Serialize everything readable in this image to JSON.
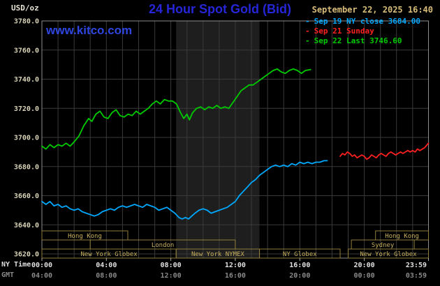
{
  "header": {
    "units_label": "USD/oz",
    "title": "24 Hour Spot Gold (Bid)",
    "datetime": "September 22, 2025 16:40",
    "watermark": "www.kitco.com"
  },
  "chart_data": {
    "type": "line",
    "title": "24 Hour Spot Gold (Bid)",
    "ylim": [
      3620,
      3780
    ],
    "xlim_hours": [
      0,
      23.983
    ],
    "last_price": 3746.6,
    "ny_close_price": 3684.0,
    "nymex_band_hours": [
      8.33,
      13.5
    ],
    "colors": {
      "band": "#1e1e1e",
      "grid": "#3a3a3a",
      "frame": "#8c8c8c",
      "axis_y": "#d8d3b8",
      "axis_ny": "#e0e0e0",
      "axis_gmt": "#8a8a8a",
      "session_border": "#8f7d3a",
      "session_text": "#c8b15e",
      "tick": "#aaaaaa"
    },
    "y_axis": {
      "ticks": [
        {
          "value": 3780,
          "label": "3780.0"
        },
        {
          "value": 3760,
          "label": "3760.0"
        },
        {
          "value": 3740,
          "label": "3740.0"
        },
        {
          "value": 3720,
          "label": "3720.0"
        },
        {
          "value": 3700,
          "label": "3700.0"
        },
        {
          "value": 3680,
          "label": "3680.0"
        },
        {
          "value": 3660,
          "label": "3660.0"
        },
        {
          "value": 3640,
          "label": "3640.0"
        },
        {
          "value": 3620,
          "label": "3620.0"
        }
      ]
    },
    "x_axis": {
      "row1_label": "NY Time",
      "row2_label": "GMT",
      "ticks": [
        {
          "h": 0,
          "ny": "00:00",
          "gmt": "04:00"
        },
        {
          "h": 4,
          "ny": "04:00",
          "gmt": "08:00"
        },
        {
          "h": 8,
          "ny": "08:00",
          "gmt": "12:00"
        },
        {
          "h": 12,
          "ny": "12:00",
          "gmt": "16:00"
        },
        {
          "h": 16,
          "ny": "16:00",
          "gmt": "20:00"
        },
        {
          "h": 20,
          "ny": "20:00",
          "gmt": "00:00"
        },
        {
          "h": 23.983,
          "ny": "23:59",
          "gmt": "03:59"
        }
      ]
    },
    "legend": [
      {
        "marker": "-",
        "label": "Sep 19 NY close 3684.00",
        "color": "#00a8ff"
      },
      {
        "marker": "-",
        "label": "Sep 21 Sunday",
        "color": "#ff2020"
      },
      {
        "marker": "-",
        "label": "Sep 22 Last 3746.60",
        "color": "#00cc00"
      }
    ],
    "market_sessions": [
      {
        "row": 0,
        "start_h": 0,
        "end_h": 5.33,
        "label": "Hong Kong"
      },
      {
        "row": 0,
        "start_h": 20.7,
        "end_h": 23.983,
        "label": "Hong Kong"
      },
      {
        "row": 1,
        "start_h": 3.0,
        "end_h": 12.0,
        "label": "London"
      },
      {
        "row": 1,
        "start_h": 19.2,
        "end_h": 23.1,
        "label": "Sydney"
      },
      {
        "row": 2,
        "start_h": 0,
        "end_h": 8.33,
        "label": "New York Globex"
      },
      {
        "row": 2,
        "start_h": 8.33,
        "end_h": 13.5,
        "label": "New York NYMEX"
      },
      {
        "row": 2,
        "start_h": 13.5,
        "end_h": 18.5,
        "label": "NY Globex"
      },
      {
        "row": 2,
        "start_h": 19.0,
        "end_h": 23.983,
        "label": "New York Globex"
      }
    ],
    "series": [
      {
        "id": "sep19",
        "name": "Sep 19 NY close",
        "color": "#00a8ff",
        "points": [
          [
            0,
            3656
          ],
          [
            0.25,
            3654
          ],
          [
            0.5,
            3656
          ],
          [
            0.75,
            3653
          ],
          [
            1,
            3654
          ],
          [
            1.25,
            3652
          ],
          [
            1.5,
            3653
          ],
          [
            1.75,
            3651
          ],
          [
            2,
            3650
          ],
          [
            2.25,
            3651
          ],
          [
            2.5,
            3649
          ],
          [
            2.75,
            3648
          ],
          [
            3,
            3647
          ],
          [
            3.25,
            3646
          ],
          [
            3.5,
            3647
          ],
          [
            3.75,
            3649
          ],
          [
            4,
            3650
          ],
          [
            4.25,
            3651
          ],
          [
            4.5,
            3650
          ],
          [
            4.75,
            3652
          ],
          [
            5,
            3653
          ],
          [
            5.25,
            3652
          ],
          [
            5.5,
            3653
          ],
          [
            5.75,
            3654
          ],
          [
            6,
            3653
          ],
          [
            6.25,
            3652
          ],
          [
            6.5,
            3654
          ],
          [
            6.75,
            3653
          ],
          [
            7,
            3652
          ],
          [
            7.25,
            3650
          ],
          [
            7.5,
            3651
          ],
          [
            7.75,
            3652
          ],
          [
            8,
            3650
          ],
          [
            8.25,
            3648
          ],
          [
            8.5,
            3645
          ],
          [
            8.7,
            3644
          ],
          [
            8.9,
            3645
          ],
          [
            9.1,
            3644
          ],
          [
            9.3,
            3646
          ],
          [
            9.5,
            3648
          ],
          [
            9.75,
            3650
          ],
          [
            10,
            3651
          ],
          [
            10.25,
            3650
          ],
          [
            10.5,
            3648
          ],
          [
            10.75,
            3649
          ],
          [
            11,
            3650
          ],
          [
            11.25,
            3651
          ],
          [
            11.5,
            3652
          ],
          [
            11.75,
            3654
          ],
          [
            12,
            3656
          ],
          [
            12.25,
            3660
          ],
          [
            12.5,
            3663
          ],
          [
            12.75,
            3666
          ],
          [
            13,
            3669
          ],
          [
            13.25,
            3671
          ],
          [
            13.5,
            3674
          ],
          [
            13.75,
            3676
          ],
          [
            14,
            3678
          ],
          [
            14.25,
            3680
          ],
          [
            14.5,
            3681
          ],
          [
            14.75,
            3680
          ],
          [
            15,
            3681
          ],
          [
            15.25,
            3680
          ],
          [
            15.5,
            3682
          ],
          [
            15.75,
            3681
          ],
          [
            16,
            3683
          ],
          [
            16.25,
            3682
          ],
          [
            16.5,
            3683
          ],
          [
            16.75,
            3682
          ],
          [
            17,
            3683
          ],
          [
            17.25,
            3683
          ],
          [
            17.5,
            3684
          ],
          [
            17.7,
            3684
          ]
        ]
      },
      {
        "id": "sep21",
        "name": "Sep 21 Sunday",
        "color": "#ff2020",
        "points": [
          [
            18.5,
            3687
          ],
          [
            18.65,
            3689
          ],
          [
            18.8,
            3688
          ],
          [
            18.95,
            3690
          ],
          [
            19.1,
            3689
          ],
          [
            19.25,
            3687
          ],
          [
            19.4,
            3688
          ],
          [
            19.55,
            3686
          ],
          [
            19.7,
            3687
          ],
          [
            19.85,
            3688
          ],
          [
            20,
            3687
          ],
          [
            20.15,
            3685
          ],
          [
            20.3,
            3686
          ],
          [
            20.45,
            3688
          ],
          [
            20.6,
            3687
          ],
          [
            20.75,
            3686
          ],
          [
            20.9,
            3688
          ],
          [
            21.05,
            3689
          ],
          [
            21.2,
            3688
          ],
          [
            21.35,
            3687
          ],
          [
            21.5,
            3689
          ],
          [
            21.65,
            3690
          ],
          [
            21.8,
            3689
          ],
          [
            21.95,
            3688
          ],
          [
            22.1,
            3689
          ],
          [
            22.25,
            3690
          ],
          [
            22.4,
            3689
          ],
          [
            22.55,
            3690
          ],
          [
            22.7,
            3691
          ],
          [
            22.85,
            3690
          ],
          [
            23,
            3691
          ],
          [
            23.15,
            3690
          ],
          [
            23.3,
            3692
          ],
          [
            23.45,
            3691
          ],
          [
            23.6,
            3692
          ],
          [
            23.75,
            3693
          ],
          [
            23.9,
            3695
          ],
          [
            23.98,
            3696
          ]
        ]
      },
      {
        "id": "sep22",
        "name": "Sep 22 Last",
        "color": "#00cc00",
        "points": [
          [
            0,
            3694
          ],
          [
            0.25,
            3692
          ],
          [
            0.5,
            3695
          ],
          [
            0.75,
            3693
          ],
          [
            1,
            3695
          ],
          [
            1.25,
            3694
          ],
          [
            1.5,
            3696
          ],
          [
            1.75,
            3694
          ],
          [
            2,
            3697
          ],
          [
            2.3,
            3701
          ],
          [
            2.6,
            3708
          ],
          [
            2.9,
            3713
          ],
          [
            3.1,
            3711
          ],
          [
            3.35,
            3716
          ],
          [
            3.6,
            3718
          ],
          [
            3.85,
            3714
          ],
          [
            4.1,
            3713
          ],
          [
            4.35,
            3717
          ],
          [
            4.6,
            3719
          ],
          [
            4.85,
            3715
          ],
          [
            5.1,
            3714
          ],
          [
            5.35,
            3716
          ],
          [
            5.6,
            3715
          ],
          [
            5.85,
            3718
          ],
          [
            6.1,
            3716
          ],
          [
            6.35,
            3718
          ],
          [
            6.6,
            3720
          ],
          [
            6.85,
            3723
          ],
          [
            7.1,
            3725
          ],
          [
            7.35,
            3723
          ],
          [
            7.6,
            3726
          ],
          [
            7.85,
            3725
          ],
          [
            8.1,
            3725
          ],
          [
            8.35,
            3723
          ],
          [
            8.6,
            3717
          ],
          [
            8.8,
            3713
          ],
          [
            9,
            3716
          ],
          [
            9.15,
            3712
          ],
          [
            9.35,
            3717
          ],
          [
            9.6,
            3720
          ],
          [
            9.85,
            3721
          ],
          [
            10.1,
            3719
          ],
          [
            10.35,
            3721
          ],
          [
            10.6,
            3720
          ],
          [
            10.85,
            3722
          ],
          [
            11.1,
            3720
          ],
          [
            11.35,
            3721
          ],
          [
            11.6,
            3720
          ],
          [
            11.85,
            3724
          ],
          [
            12.1,
            3728
          ],
          [
            12.35,
            3732
          ],
          [
            12.6,
            3734
          ],
          [
            12.85,
            3736
          ],
          [
            13.1,
            3736
          ],
          [
            13.35,
            3738
          ],
          [
            13.6,
            3740
          ],
          [
            13.85,
            3742
          ],
          [
            14.1,
            3744
          ],
          [
            14.35,
            3746
          ],
          [
            14.6,
            3747
          ],
          [
            14.85,
            3745
          ],
          [
            15.1,
            3744
          ],
          [
            15.35,
            3746
          ],
          [
            15.6,
            3747
          ],
          [
            15.85,
            3746
          ],
          [
            16.1,
            3744
          ],
          [
            16.35,
            3746
          ],
          [
            16.67,
            3746.6
          ]
        ]
      }
    ]
  }
}
